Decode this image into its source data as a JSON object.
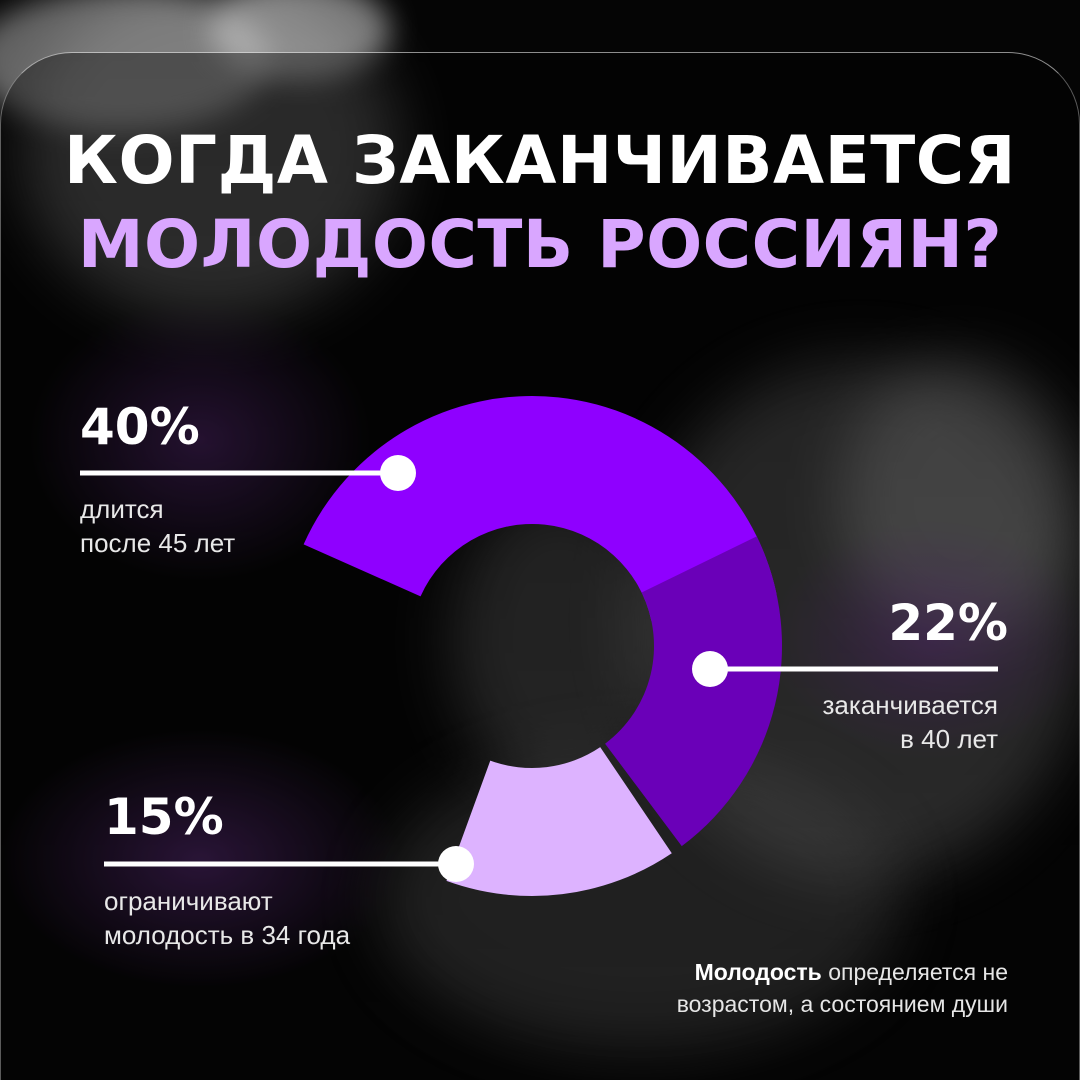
{
  "title": {
    "line1": "КОГДА ЗАКАНЧИВАЕТСЯ",
    "line2": "МОЛОДОСТЬ РОССИЯН?"
  },
  "colors": {
    "accent_light": "#d9a6ff",
    "slice_40": "#8f00ff",
    "slice_22": "#6a00b8",
    "slice_15": "#ddb3ff",
    "background": "#050505"
  },
  "chart_data": {
    "type": "pie",
    "variant": "donut",
    "units": "%",
    "slices": [
      {
        "value": 40,
        "label": "40%",
        "desc_lines": [
          "длится",
          "после 45 лет"
        ],
        "color": "#8f00ff"
      },
      {
        "value": 22,
        "label": "22%",
        "desc_lines": [
          "заканчивается",
          "в 40 лет"
        ],
        "color": "#6a00b8"
      },
      {
        "value": 15,
        "label": "15%",
        "desc_lines": [
          "ограничивают",
          "молодость в 34 года"
        ],
        "color": "#ddb3ff"
      }
    ],
    "legend": "none"
  },
  "note": {
    "bold": "Молодость",
    "line1_rest": " определяется не",
    "line2": "возрастом, а состоянием души"
  }
}
